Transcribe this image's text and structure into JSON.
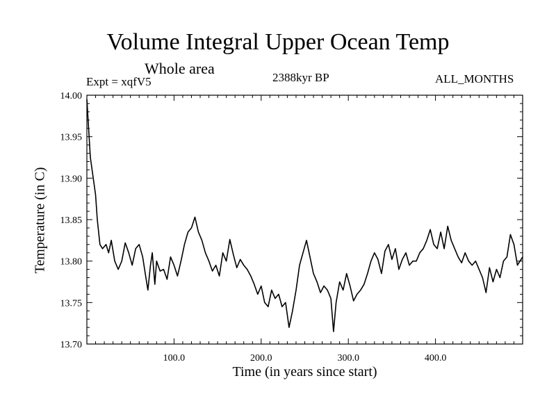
{
  "chart_data": {
    "type": "line",
    "title": "Volume Integral Upper Ocean Temp",
    "subtitle": "Whole area",
    "expt_label": "Expt = xqfV5",
    "period_label": "2388kyr BP",
    "months_label": "ALL_MONTHS",
    "xlabel": "Time (in years since start)",
    "ylabel": "Temperature (in C)",
    "xlim": [
      0,
      500
    ],
    "ylim": [
      13.7,
      14.0
    ],
    "x_ticks": [
      {
        "value": 100,
        "label": "100.0"
      },
      {
        "value": 200,
        "label": "200.0"
      },
      {
        "value": 300,
        "label": "300.0"
      },
      {
        "value": 400,
        "label": "400.0"
      }
    ],
    "y_ticks": [
      {
        "value": 13.7,
        "label": "13.70"
      },
      {
        "value": 13.75,
        "label": "13.75"
      },
      {
        "value": 13.8,
        "label": "13.80"
      },
      {
        "value": 13.85,
        "label": "13.85"
      },
      {
        "value": 13.9,
        "label": "13.90"
      },
      {
        "value": 13.95,
        "label": "13.95"
      },
      {
        "value": 14.0,
        "label": "14.00"
      }
    ],
    "grid": false,
    "series": [
      {
        "name": "Temperature",
        "color": "#000000",
        "points": [
          [
            0,
            13.995
          ],
          [
            2,
            13.96
          ],
          [
            4,
            13.925
          ],
          [
            6,
            13.91
          ],
          [
            8,
            13.895
          ],
          [
            10,
            13.88
          ],
          [
            12,
            13.85
          ],
          [
            15,
            13.82
          ],
          [
            18,
            13.815
          ],
          [
            22,
            13.82
          ],
          [
            25,
            13.81
          ],
          [
            28,
            13.825
          ],
          [
            32,
            13.8
          ],
          [
            36,
            13.79
          ],
          [
            40,
            13.8
          ],
          [
            44,
            13.822
          ],
          [
            48,
            13.81
          ],
          [
            52,
            13.795
          ],
          [
            56,
            13.815
          ],
          [
            60,
            13.82
          ],
          [
            64,
            13.805
          ],
          [
            67,
            13.785
          ],
          [
            70,
            13.765
          ],
          [
            73,
            13.795
          ],
          [
            75,
            13.81
          ],
          [
            78,
            13.772
          ],
          [
            80,
            13.8
          ],
          [
            84,
            13.788
          ],
          [
            88,
            13.79
          ],
          [
            92,
            13.778
          ],
          [
            96,
            13.805
          ],
          [
            100,
            13.795
          ],
          [
            104,
            13.782
          ],
          [
            108,
            13.8
          ],
          [
            112,
            13.82
          ],
          [
            116,
            13.835
          ],
          [
            120,
            13.84
          ],
          [
            124,
            13.853
          ],
          [
            128,
            13.835
          ],
          [
            132,
            13.825
          ],
          [
            136,
            13.81
          ],
          [
            140,
            13.8
          ],
          [
            144,
            13.788
          ],
          [
            148,
            13.795
          ],
          [
            152,
            13.782
          ],
          [
            156,
            13.81
          ],
          [
            160,
            13.8
          ],
          [
            164,
            13.826
          ],
          [
            168,
            13.808
          ],
          [
            172,
            13.792
          ],
          [
            176,
            13.802
          ],
          [
            180,
            13.795
          ],
          [
            184,
            13.79
          ],
          [
            188,
            13.782
          ],
          [
            192,
            13.772
          ],
          [
            196,
            13.76
          ],
          [
            200,
            13.77
          ],
          [
            204,
            13.75
          ],
          [
            208,
            13.745
          ],
          [
            212,
            13.765
          ],
          [
            216,
            13.755
          ],
          [
            220,
            13.76
          ],
          [
            224,
            13.745
          ],
          [
            228,
            13.75
          ],
          [
            232,
            13.72
          ],
          [
            236,
            13.74
          ],
          [
            240,
            13.765
          ],
          [
            244,
            13.795
          ],
          [
            248,
            13.81
          ],
          [
            252,
            13.825
          ],
          [
            256,
            13.805
          ],
          [
            260,
            13.785
          ],
          [
            264,
            13.775
          ],
          [
            268,
            13.762
          ],
          [
            272,
            13.77
          ],
          [
            276,
            13.765
          ],
          [
            280,
            13.755
          ],
          [
            283,
            13.715
          ],
          [
            286,
            13.75
          ],
          [
            290,
            13.775
          ],
          [
            294,
            13.765
          ],
          [
            298,
            13.785
          ],
          [
            302,
            13.77
          ],
          [
            306,
            13.752
          ],
          [
            310,
            13.76
          ],
          [
            314,
            13.765
          ],
          [
            318,
            13.772
          ],
          [
            322,
            13.785
          ],
          [
            326,
            13.8
          ],
          [
            330,
            13.81
          ],
          [
            334,
            13.802
          ],
          [
            338,
            13.785
          ],
          [
            342,
            13.812
          ],
          [
            346,
            13.82
          ],
          [
            350,
            13.802
          ],
          [
            354,
            13.815
          ],
          [
            358,
            13.79
          ],
          [
            362,
            13.802
          ],
          [
            366,
            13.81
          ],
          [
            370,
            13.795
          ],
          [
            374,
            13.8
          ],
          [
            378,
            13.8
          ],
          [
            382,
            13.81
          ],
          [
            386,
            13.815
          ],
          [
            390,
            13.825
          ],
          [
            394,
            13.838
          ],
          [
            398,
            13.82
          ],
          [
            402,
            13.815
          ],
          [
            406,
            13.835
          ],
          [
            410,
            13.815
          ],
          [
            414,
            13.842
          ],
          [
            418,
            13.825
          ],
          [
            422,
            13.815
          ],
          [
            426,
            13.805
          ],
          [
            430,
            13.798
          ],
          [
            434,
            13.81
          ],
          [
            438,
            13.8
          ],
          [
            442,
            13.795
          ],
          [
            446,
            13.8
          ],
          [
            450,
            13.79
          ],
          [
            454,
            13.78
          ],
          [
            458,
            13.762
          ],
          [
            462,
            13.792
          ],
          [
            466,
            13.775
          ],
          [
            470,
            13.79
          ],
          [
            474,
            13.78
          ],
          [
            478,
            13.8
          ],
          [
            482,
            13.805
          ],
          [
            486,
            13.832
          ],
          [
            490,
            13.82
          ],
          [
            494,
            13.795
          ],
          [
            497,
            13.8
          ],
          [
            500,
            13.805
          ]
        ]
      }
    ]
  }
}
